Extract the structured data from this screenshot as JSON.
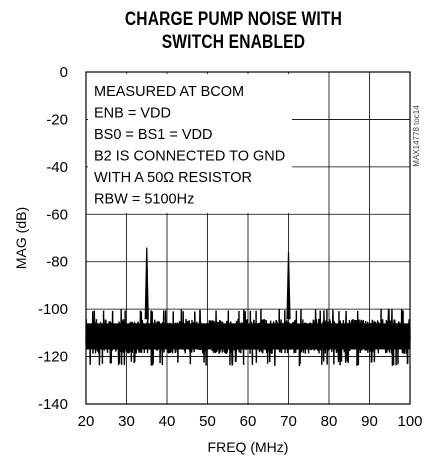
{
  "chart_data": {
    "type": "line",
    "title_lines": [
      "CHARGE PUMP NOISE WITH",
      "SWITCH ENABLED"
    ],
    "xlabel": "FREQ (MHz)",
    "ylabel": "MAG (dB)",
    "xlim": [
      20,
      100
    ],
    "ylim": [
      -140,
      0
    ],
    "xticks": [
      20,
      30,
      40,
      50,
      60,
      70,
      80,
      90,
      100
    ],
    "yticks": [
      0,
      -20,
      -40,
      -60,
      -80,
      -100,
      -120,
      -140
    ],
    "grid": true,
    "annotation_lines": [
      "MEASURED AT BCOM",
      "ENB = VDD",
      "BS0 = BS1 = VDD",
      "B2 IS CONNECTED TO GND",
      "WITH A 50Ω RESISTOR",
      "RBW = 5100Hz"
    ],
    "figure_id": "MAX14778 toc14",
    "series": [
      {
        "noise_floor": {
          "x_range": [
            20,
            100
          ],
          "y_range": [
            -122,
            -101
          ]
        },
        "peaks": [
          {
            "x": 35,
            "y": -74
          },
          {
            "x": 70,
            "y": -76
          }
        ]
      }
    ],
    "colors": {
      "trace": "#000000",
      "grid": "#000000",
      "background": "#ffffff"
    }
  }
}
